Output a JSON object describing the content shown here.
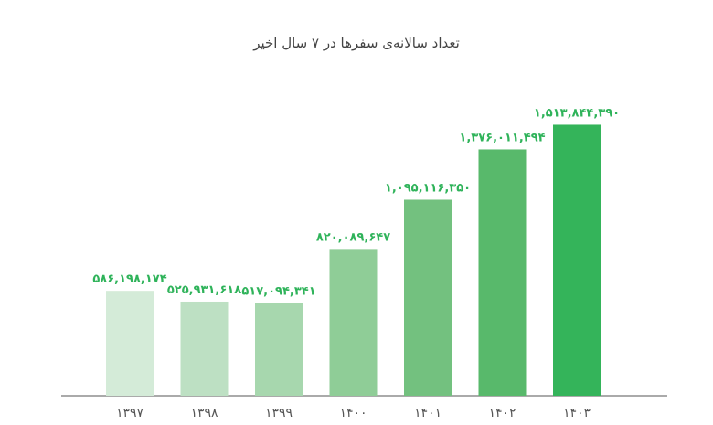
{
  "chart_data": {
    "type": "bar",
    "title": "تعداد سالانه‌ی سفرها در ۷ سال اخیر",
    "xlabel": "",
    "ylabel": "",
    "categories": [
      "۱۳۹۷",
      "۱۳۹۸",
      "۱۳۹۹",
      "۱۴۰۰",
      "۱۴۰۱",
      "۱۴۰۲",
      "۱۴۰۳"
    ],
    "values": [
      586198174,
      525931618,
      517094341,
      820089647,
      1095116350,
      1376011494,
      1513844390
    ],
    "value_labels": [
      "۵۸۶,۱۹۸,۱۷۴",
      "۵۲۵,۹۳۱,۶۱۸",
      "۵۱۷,۰۹۴,۳۴۱",
      "۸۲۰,۰۸۹,۶۴۷",
      "۱,۰۹۵,۱۱۶,۳۵۰",
      "۱,۳۷۶,۰۱۱,۴۹۴",
      "۱,۵۱۳,۸۴۴,۳۹۰"
    ],
    "bar_colors": [
      "#d4ebd8",
      "#bde0c3",
      "#a7d7ae",
      "#8fcd97",
      "#73c17f",
      "#58b96b",
      "#34b45a"
    ],
    "label_color": "#2fb35a",
    "axis_color": "#555555",
    "ylim": [
      0,
      1700000000
    ],
    "grid": false,
    "legend": "none"
  }
}
